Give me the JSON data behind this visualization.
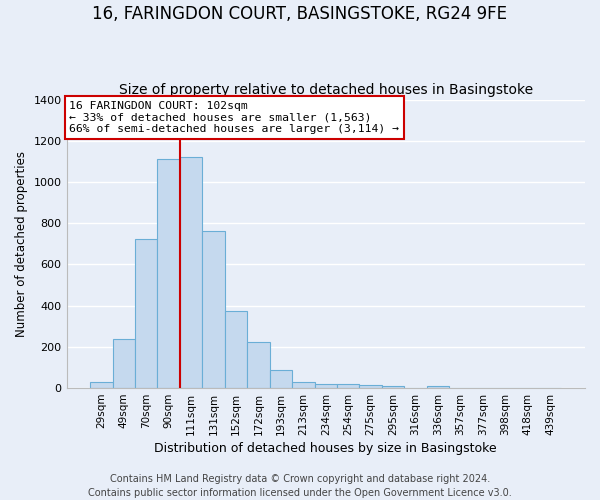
{
  "title": "16, FARINGDON COURT, BASINGSTOKE, RG24 9FE",
  "subtitle": "Size of property relative to detached houses in Basingstoke",
  "xlabel": "Distribution of detached houses by size in Basingstoke",
  "ylabel": "Number of detached properties",
  "bar_labels": [
    "29sqm",
    "49sqm",
    "70sqm",
    "90sqm",
    "111sqm",
    "131sqm",
    "152sqm",
    "172sqm",
    "193sqm",
    "213sqm",
    "234sqm",
    "254sqm",
    "275sqm",
    "295sqm",
    "316sqm",
    "336sqm",
    "357sqm",
    "377sqm",
    "398sqm",
    "418sqm",
    "439sqm"
  ],
  "bar_values": [
    30,
    240,
    725,
    1110,
    1120,
    760,
    375,
    225,
    90,
    30,
    20,
    20,
    15,
    10,
    0,
    10,
    0,
    0,
    0,
    0,
    0
  ],
  "bar_color": "#c5d9ee",
  "bar_edgecolor": "#6aaed6",
  "vline_x": 3.5,
  "vline_color": "#cc0000",
  "annotation_title": "16 FARINGDON COURT: 102sqm",
  "annotation_line1": "← 33% of detached houses are smaller (1,563)",
  "annotation_line2": "66% of semi-detached houses are larger (3,114) →",
  "annotation_box_facecolor": "#ffffff",
  "annotation_box_edgecolor": "#cc0000",
  "ylim": [
    0,
    1400
  ],
  "yticks": [
    0,
    200,
    400,
    600,
    800,
    1000,
    1200,
    1400
  ],
  "footer_line1": "Contains HM Land Registry data © Crown copyright and database right 2024.",
  "footer_line2": "Contains public sector information licensed under the Open Government Licence v3.0.",
  "background_color": "#e8eef8",
  "plot_background": "#e8eef8",
  "grid_color": "#ffffff",
  "title_fontsize": 12,
  "subtitle_fontsize": 10,
  "footer_fontsize": 7
}
